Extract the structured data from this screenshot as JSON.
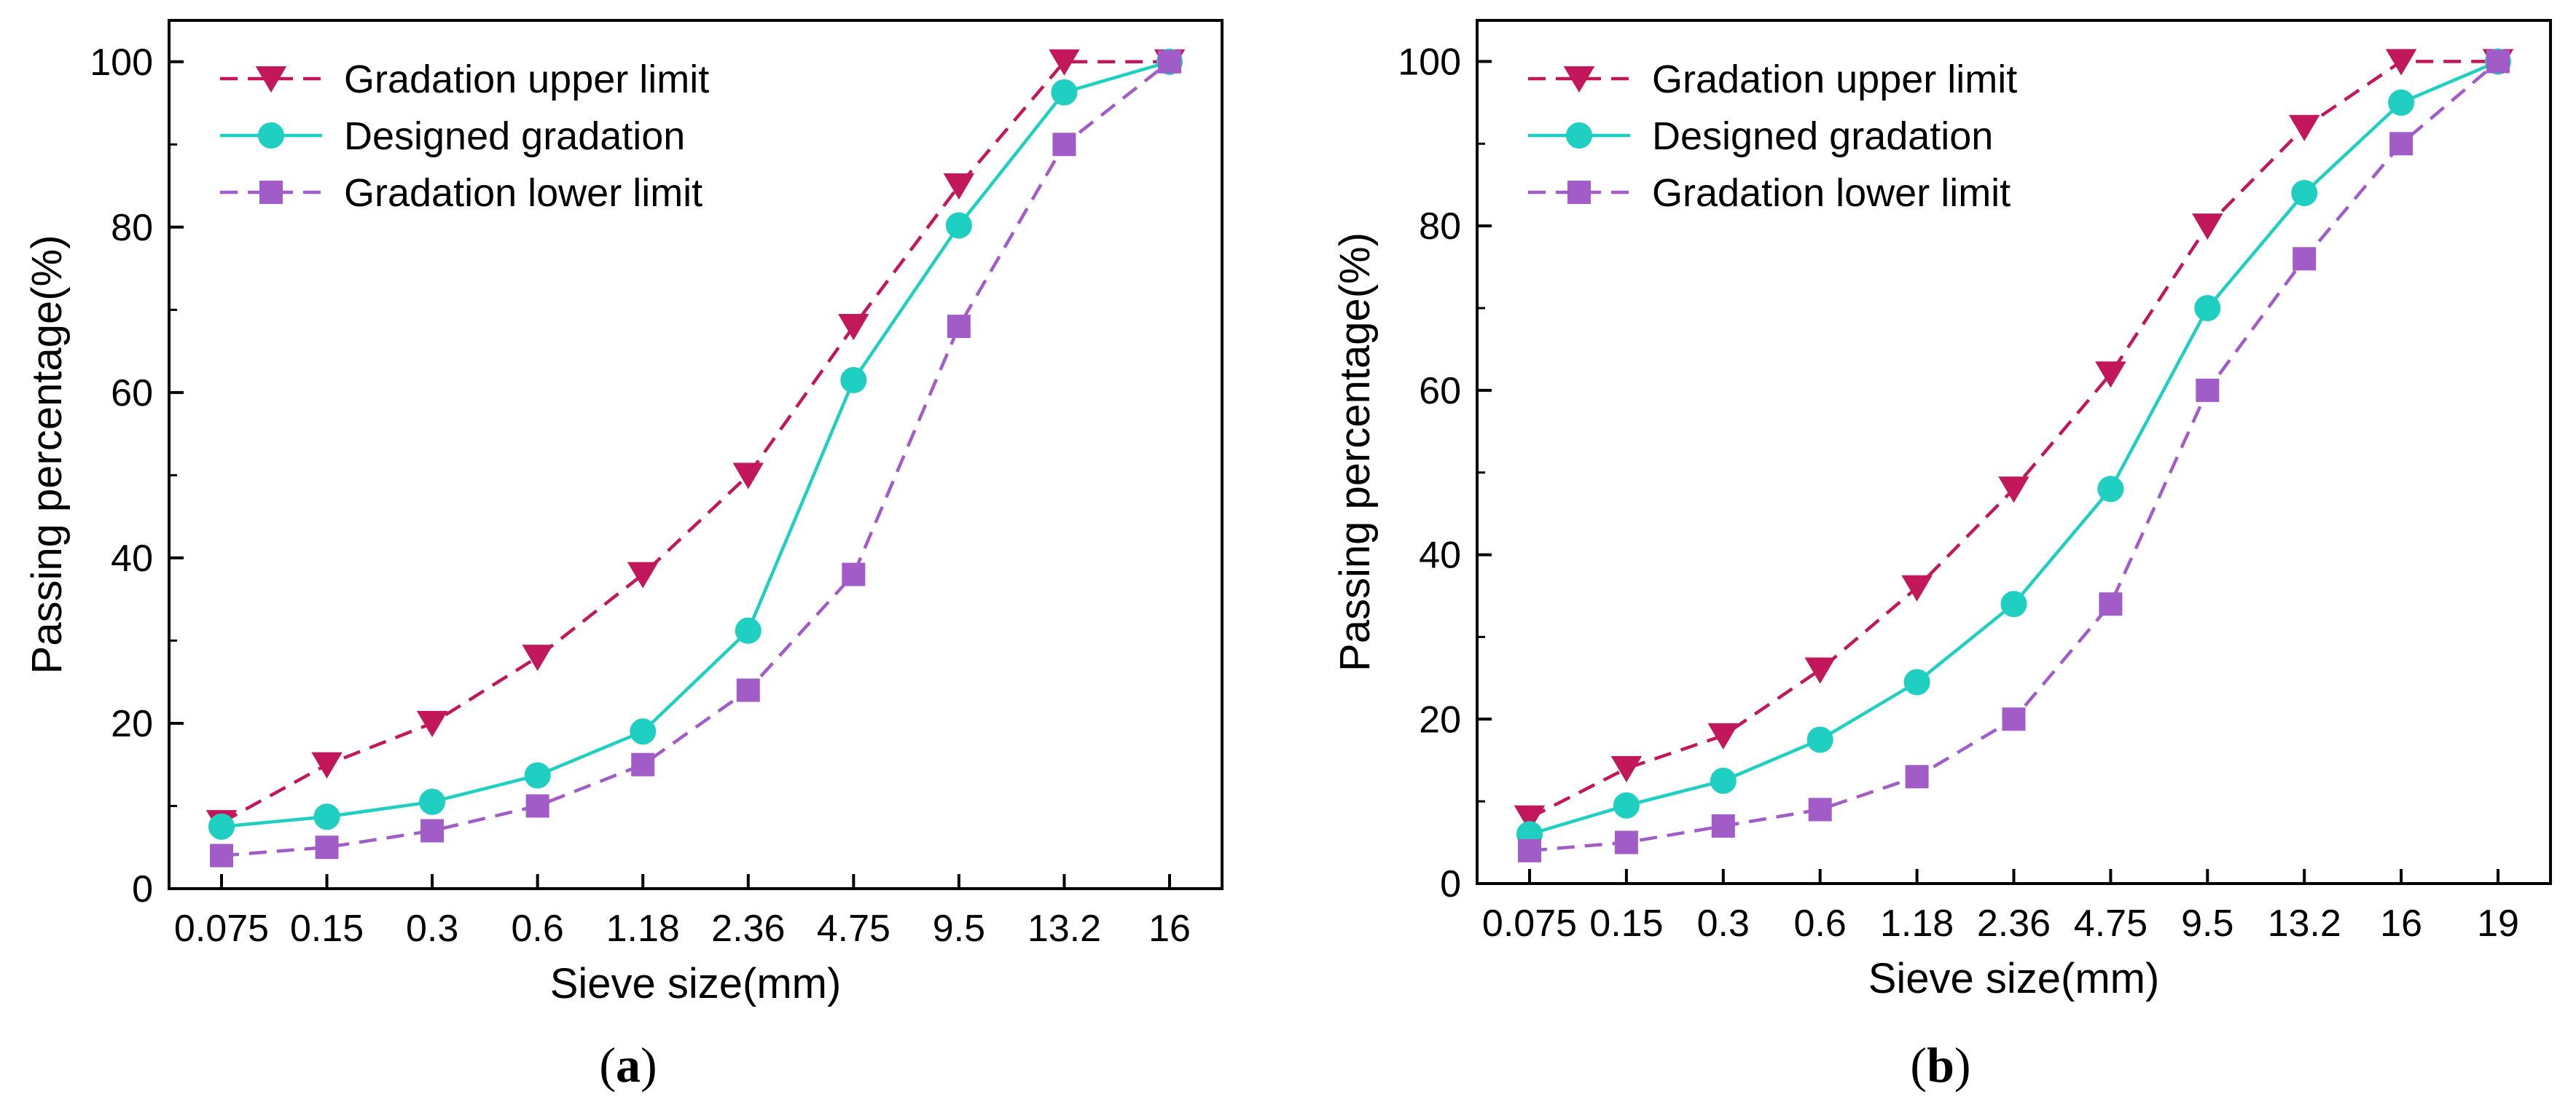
{
  "chart_data": [
    {
      "type": "line",
      "panel_label": "a",
      "xlabel": "Sieve size(mm)",
      "ylabel": "Passing percentage(%)",
      "categories": [
        "0.075",
        "0.15",
        "0.3",
        "0.6",
        "1.18",
        "2.36",
        "4.75",
        "9.5",
        "13.2",
        "16"
      ],
      "ylim": [
        0,
        105
      ],
      "yticks": [
        0,
        20,
        40,
        60,
        80,
        100
      ],
      "legend_position": "top-left",
      "series": [
        {
          "name": "Gradation upper limit",
          "color": "#c2185b",
          "marker": "triangle-down",
          "line": "dashed",
          "values": [
            8,
            15,
            20,
            28,
            38,
            50,
            68,
            85,
            100,
            100
          ]
        },
        {
          "name": "Designed gradation",
          "color": "#1fcfc1",
          "marker": "circle",
          "line": "solid",
          "values": [
            7.5,
            8.7,
            10.5,
            13.7,
            19,
            31.2,
            61.5,
            80.2,
            96.3,
            100
          ]
        },
        {
          "name": "Gradation lower limit",
          "color": "#a25cc7",
          "marker": "square",
          "line": "dashed",
          "values": [
            4,
            5,
            7,
            10,
            15,
            24,
            38,
            68,
            90,
            100
          ]
        }
      ]
    },
    {
      "type": "line",
      "panel_label": "b",
      "xlabel": "Sieve size(mm)",
      "ylabel": "Passing percentage(%)",
      "categories": [
        "0.075",
        "0.15",
        "0.3",
        "0.6",
        "1.18",
        "2.36",
        "4.75",
        "9.5",
        "13.2",
        "16",
        "19"
      ],
      "ylim": [
        0,
        105
      ],
      "yticks": [
        0,
        20,
        40,
        60,
        80,
        100
      ],
      "legend_position": "top-left",
      "series": [
        {
          "name": "Gradation upper limit",
          "color": "#c2185b",
          "marker": "triangle-down",
          "line": "dashed",
          "values": [
            8,
            14,
            18,
            26,
            36,
            48,
            62,
            80,
            92,
            100,
            100
          ]
        },
        {
          "name": "Designed gradation",
          "color": "#1fcfc1",
          "marker": "circle",
          "line": "solid",
          "values": [
            6,
            9.5,
            12.5,
            17.5,
            24.5,
            34,
            48,
            70,
            84,
            95,
            100
          ]
        },
        {
          "name": "Gradation lower limit",
          "color": "#a25cc7",
          "marker": "square",
          "line": "dashed",
          "values": [
            4,
            5,
            7,
            9,
            13,
            20,
            34,
            60,
            76,
            90,
            100
          ]
        }
      ]
    }
  ]
}
